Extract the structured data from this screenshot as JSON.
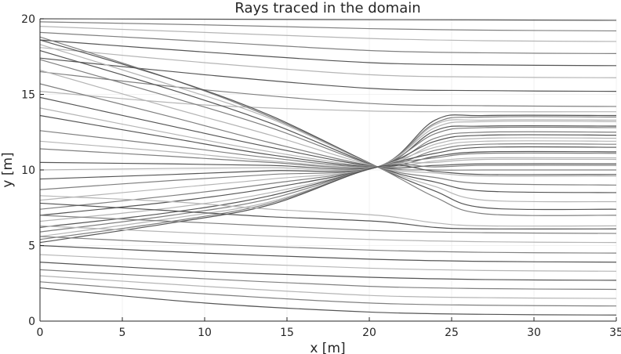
{
  "chart_data": {
    "type": "line",
    "title": "Rays traced in the domain",
    "xlabel": "x [m]",
    "ylabel": "y [m]",
    "xlim": [
      0,
      35
    ],
    "ylim": [
      0,
      20
    ],
    "xticks": [
      0,
      5,
      10,
      15,
      20,
      25,
      30,
      35
    ],
    "yticks": [
      0,
      5,
      10,
      15,
      20
    ],
    "grid": true,
    "legend": "none",
    "colors": {
      "ray_dark": "#555555",
      "ray_light": "#b5b5b5",
      "axis": "#262626",
      "grid": "#e6e6e6"
    },
    "focus_point": [
      20.5,
      10.2
    ],
    "series": [
      {
        "x": [
          0,
          35
        ],
        "y": [
          20.0,
          19.9
        ]
      },
      {
        "x": [
          0,
          10,
          20,
          27,
          35
        ],
        "y": [
          19.8,
          19.6,
          19.35,
          19.25,
          19.2
        ]
      },
      {
        "x": [
          0,
          10,
          20,
          27,
          35
        ],
        "y": [
          19.5,
          19.1,
          18.7,
          18.55,
          18.5
        ]
      },
      {
        "x": [
          0,
          10,
          20,
          27,
          35
        ],
        "y": [
          19.1,
          18.5,
          17.9,
          17.75,
          17.7
        ]
      },
      {
        "x": [
          0,
          10,
          20,
          27,
          35
        ],
        "y": [
          18.6,
          17.8,
          17.1,
          16.95,
          16.9
        ]
      },
      {
        "x": [
          0,
          10,
          20,
          27,
          35
        ],
        "y": [
          18.1,
          17.1,
          16.3,
          16.15,
          16.1
        ]
      },
      {
        "x": [
          0,
          10,
          20,
          27,
          35
        ],
        "y": [
          17.4,
          16.3,
          15.4,
          15.25,
          15.2
        ]
      },
      {
        "x": [
          0,
          10,
          20,
          27,
          35
        ],
        "y": [
          16.5,
          15.3,
          14.4,
          14.25,
          14.2
        ]
      },
      {
        "x": [
          0,
          10,
          20,
          27,
          35
        ],
        "y": [
          15.2,
          14.3,
          13.9,
          13.85,
          13.85
        ]
      },
      {
        "x": [
          0,
          8,
          14,
          20.5,
          24,
          27,
          35
        ],
        "y": [
          18.8,
          16.0,
          13.5,
          10.2,
          8.2,
          7.1,
          7.0
        ]
      },
      {
        "x": [
          0,
          8,
          14,
          20.5,
          24,
          27,
          35
        ],
        "y": [
          18.6,
          16.0,
          13.6,
          10.2,
          8.6,
          7.5,
          7.4
        ]
      },
      {
        "x": [
          0,
          8,
          14,
          20.5,
          24,
          27,
          35
        ],
        "y": [
          18.3,
          15.6,
          13.4,
          10.2,
          8.9,
          8.0,
          7.9
        ]
      },
      {
        "x": [
          0,
          8,
          14,
          20.5,
          24,
          27,
          35
        ],
        "y": [
          17.9,
          15.3,
          13.1,
          10.2,
          9.2,
          8.6,
          8.5
        ]
      },
      {
        "x": [
          0,
          8,
          14,
          20.5,
          24,
          27,
          35
        ],
        "y": [
          17.3,
          14.8,
          12.8,
          10.2,
          9.5,
          9.1,
          9.0
        ]
      },
      {
        "x": [
          0,
          8,
          14,
          20.5,
          24,
          27,
          35
        ],
        "y": [
          16.6,
          14.1,
          12.3,
          10.2,
          9.8,
          9.6,
          9.6
        ]
      },
      {
        "x": [
          0,
          8,
          14,
          20.5,
          24,
          27,
          35
        ],
        "y": [
          15.7,
          13.5,
          11.8,
          10.2,
          10.0,
          10.0,
          10.0
        ]
      },
      {
        "x": [
          0,
          8,
          14,
          20.5,
          24,
          27,
          35
        ],
        "y": [
          14.8,
          12.9,
          11.5,
          10.2,
          10.3,
          10.4,
          10.4
        ]
      },
      {
        "x": [
          0,
          8,
          14,
          20.5,
          24,
          27,
          35
        ],
        "y": [
          14.1,
          12.4,
          11.2,
          10.2,
          10.6,
          10.8,
          10.8
        ]
      },
      {
        "x": [
          0,
          8,
          14,
          20.5,
          24,
          27,
          35
        ],
        "y": [
          13.6,
          12.1,
          11.0,
          10.2,
          10.9,
          11.2,
          11.2
        ]
      },
      {
        "x": [
          0,
          8,
          14,
          20.5,
          24,
          27,
          35
        ],
        "y": [
          12.6,
          11.6,
          10.8,
          10.2,
          11.3,
          11.7,
          11.7
        ]
      },
      {
        "x": [
          0,
          8,
          14,
          20.5,
          24,
          27,
          35
        ],
        "y": [
          11.9,
          11.2,
          10.6,
          10.2,
          11.7,
          12.1,
          12.1
        ]
      },
      {
        "x": [
          0,
          8,
          14,
          20.5,
          24,
          27,
          35
        ],
        "y": [
          11.4,
          10.9,
          10.5,
          10.2,
          12.1,
          12.5,
          12.5
        ]
      },
      {
        "x": [
          0,
          8,
          14,
          20.5,
          24,
          27,
          35
        ],
        "y": [
          10.5,
          10.4,
          10.3,
          10.2,
          12.6,
          12.9,
          12.9
        ]
      },
      {
        "x": [
          0,
          8,
          14,
          20.5,
          24,
          27,
          35
        ],
        "y": [
          10.0,
          10.1,
          10.15,
          10.2,
          13.0,
          13.3,
          13.3
        ]
      },
      {
        "x": [
          0,
          8,
          14,
          20.5,
          24,
          27,
          35
        ],
        "y": [
          9.4,
          9.7,
          9.95,
          10.2,
          13.3,
          13.6,
          13.6
        ]
      },
      {
        "x": [
          0,
          8,
          14,
          20.5,
          24,
          27,
          35
        ],
        "y": [
          8.7,
          9.3,
          9.7,
          10.2,
          13.1,
          13.5,
          13.5
        ]
      },
      {
        "x": [
          0,
          8,
          14,
          20.5,
          24,
          27,
          35
        ],
        "y": [
          8.0,
          8.8,
          9.4,
          10.2,
          12.8,
          13.2,
          13.2
        ]
      },
      {
        "x": [
          0,
          8,
          14,
          20.5,
          24,
          27,
          35
        ],
        "y": [
          7.4,
          8.3,
          9.1,
          10.2,
          12.4,
          12.8,
          12.8
        ]
      },
      {
        "x": [
          0,
          8,
          14,
          20.5,
          24,
          27,
          35
        ],
        "y": [
          7.0,
          7.9,
          8.8,
          10.2,
          11.9,
          12.3,
          12.3
        ]
      },
      {
        "x": [
          0,
          8,
          14,
          20.5,
          24,
          27,
          35
        ],
        "y": [
          6.6,
          7.5,
          8.5,
          10.2,
          11.5,
          11.9,
          11.9
        ]
      },
      {
        "x": [
          0,
          8,
          14,
          20.5,
          24,
          27,
          35
        ],
        "y": [
          6.2,
          7.2,
          8.3,
          10.2,
          11.1,
          11.5,
          11.5
        ]
      },
      {
        "x": [
          0,
          8,
          14,
          20.5,
          24,
          27,
          35
        ],
        "y": [
          5.9,
          7.0,
          8.1,
          10.2,
          10.8,
          11.1,
          11.1
        ]
      },
      {
        "x": [
          0,
          8,
          14,
          20.5,
          24,
          27,
          35
        ],
        "y": [
          5.6,
          6.8,
          7.9,
          10.2,
          10.5,
          10.7,
          10.7
        ]
      },
      {
        "x": [
          0,
          8,
          14,
          20.5,
          24,
          27,
          35
        ],
        "y": [
          5.4,
          6.6,
          7.8,
          10.2,
          10.2,
          10.3,
          10.3
        ]
      },
      {
        "x": [
          0,
          8,
          14,
          20.5,
          24,
          27,
          35
        ],
        "y": [
          5.2,
          6.5,
          7.7,
          10.2,
          9.9,
          9.7,
          9.7
        ]
      },
      {
        "x": [
          0,
          8,
          14,
          20.5,
          24,
          27,
          35
        ],
        "y": [
          8.3,
          7.9,
          7.4,
          7.0,
          6.5,
          6.3,
          6.3
        ]
      },
      {
        "x": [
          0,
          8,
          14,
          20.5,
          24,
          27,
          35
        ],
        "y": [
          7.8,
          7.3,
          6.9,
          6.6,
          6.2,
          6.1,
          6.1
        ]
      },
      {
        "x": [
          0,
          10,
          20,
          27,
          35
        ],
        "y": [
          7.0,
          6.5,
          6.0,
          5.85,
          5.8
        ]
      },
      {
        "x": [
          0,
          10,
          20,
          27,
          35
        ],
        "y": [
          6.3,
          5.8,
          5.4,
          5.25,
          5.2
        ]
      },
      {
        "x": [
          0,
          10,
          20,
          27,
          35
        ],
        "y": [
          5.6,
          5.1,
          4.7,
          4.55,
          4.5
        ]
      },
      {
        "x": [
          0,
          10,
          20,
          27,
          35
        ],
        "y": [
          5.0,
          4.5,
          4.1,
          3.95,
          3.9
        ]
      },
      {
        "x": [
          0,
          10,
          20,
          27,
          35
        ],
        "y": [
          4.4,
          3.9,
          3.5,
          3.35,
          3.3
        ]
      },
      {
        "x": [
          0,
          10,
          20,
          27,
          35
        ],
        "y": [
          3.9,
          3.3,
          2.9,
          2.75,
          2.7
        ]
      },
      {
        "x": [
          0,
          10,
          20,
          27,
          35
        ],
        "y": [
          3.4,
          2.8,
          2.3,
          2.15,
          2.1
        ]
      },
      {
        "x": [
          0,
          10,
          20,
          27,
          35
        ],
        "y": [
          3.0,
          2.3,
          1.7,
          1.55,
          1.5
        ]
      },
      {
        "x": [
          0,
          10,
          20,
          27,
          35
        ],
        "y": [
          2.6,
          1.8,
          1.2,
          1.05,
          1.0
        ]
      },
      {
        "x": [
          0,
          10,
          20,
          27,
          35
        ],
        "y": [
          2.2,
          1.2,
          0.6,
          0.45,
          0.4
        ]
      }
    ]
  }
}
